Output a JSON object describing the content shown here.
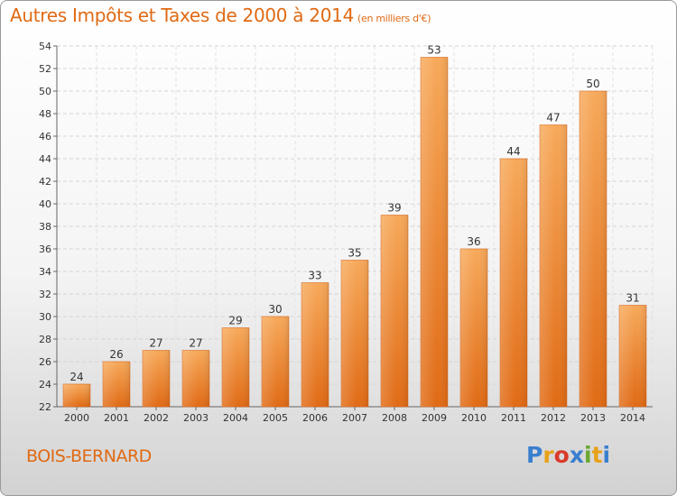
{
  "title": "Autres Impôts et Taxes de 2000 à 2014",
  "subtitle": "(en milliers d'€)",
  "commune": "BOIS-BERNARD",
  "logo": {
    "letters": [
      "P",
      "r",
      "o",
      "x",
      "i",
      "t",
      "i"
    ],
    "colors": [
      "#3a7fcf",
      "#e8a21a",
      "#d93a2b",
      "#3a7fcf",
      "#6aa832",
      "#e8a21a",
      "#3a7fcf"
    ]
  },
  "colors": {
    "bar_light": "#f7a95a",
    "bar_dark": "#e06a14",
    "accent": "#e06a14"
  },
  "chart_data": {
    "type": "bar",
    "categories": [
      "2000",
      "2001",
      "2002",
      "2003",
      "2004",
      "2005",
      "2006",
      "2007",
      "2008",
      "2009",
      "2010",
      "2011",
      "2012",
      "2013",
      "2014"
    ],
    "values": [
      24,
      26,
      27,
      27,
      29,
      30,
      33,
      35,
      39,
      53,
      36,
      44,
      47,
      50,
      31
    ],
    "ylim": [
      22,
      54
    ],
    "yticks": [
      22,
      24,
      26,
      28,
      30,
      32,
      34,
      36,
      38,
      40,
      42,
      44,
      46,
      48,
      50,
      52,
      54
    ],
    "grid": true,
    "data_labels": true
  }
}
